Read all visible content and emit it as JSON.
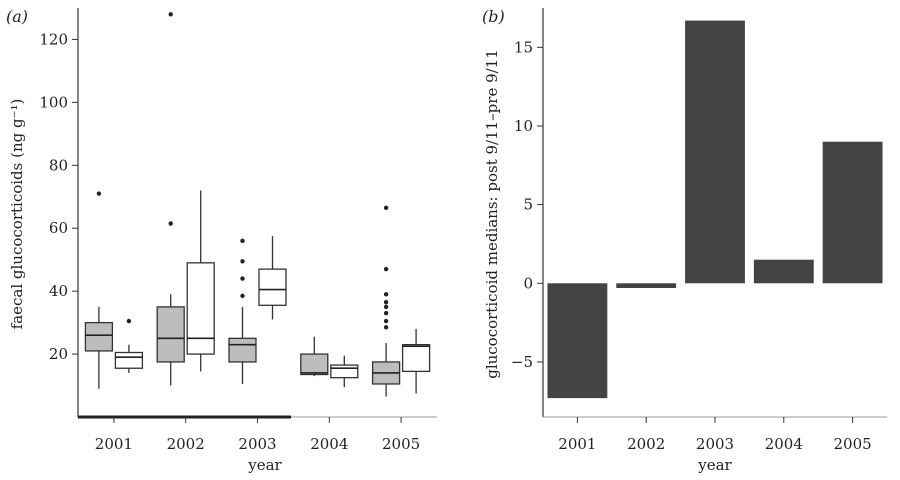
{
  "chart_data": [
    {
      "panel_label": "(a)",
      "type": "box",
      "xlabel": "year",
      "ylabel": "faecal glucocorticoids (ng g⁻¹)",
      "ylim": [
        0,
        130
      ],
      "yticks": [
        20,
        40,
        60,
        80,
        100,
        120
      ],
      "categories": [
        "2001",
        "2002",
        "2003",
        "2004",
        "2005"
      ],
      "series": [
        {
          "color": "#bdbdbd",
          "boxes": [
            {
              "category": "2001",
              "whisker_low": 9,
              "q1": 21,
              "median": 26,
              "q3": 30,
              "whisker_high": 35,
              "outliers": [
                71
              ]
            },
            {
              "category": "2002",
              "whisker_low": 10,
              "q1": 17.5,
              "median": 25,
              "q3": 35,
              "whisker_high": 39,
              "outliers": [
                61.5,
                128
              ]
            },
            {
              "category": "2003",
              "whisker_low": 10.5,
              "q1": 17.5,
              "median": 23,
              "q3": 25,
              "whisker_high": 35,
              "outliers": [
                38.5,
                44,
                49.5,
                56
              ]
            },
            {
              "category": "2004",
              "whisker_low": 13,
              "q1": 13.5,
              "median": 14,
              "q3": 20,
              "whisker_high": 25.5,
              "outliers": []
            },
            {
              "category": "2005",
              "whisker_low": 6.5,
              "q1": 10.5,
              "median": 14,
              "q3": 17.5,
              "whisker_high": 23.5,
              "outliers": [
                28.5,
                30.5,
                33,
                35,
                36.5,
                39,
                47,
                66.5
              ]
            }
          ]
        },
        {
          "color": "#ffffff",
          "boxes": [
            {
              "category": "2001",
              "whisker_low": 14,
              "q1": 15.5,
              "median": 19,
              "q3": 20.5,
              "whisker_high": 23,
              "outliers": [
                30.5
              ]
            },
            {
              "category": "2002",
              "whisker_low": 14.5,
              "q1": 20,
              "median": 25,
              "q3": 49,
              "whisker_high": 72,
              "outliers": []
            },
            {
              "category": "2003",
              "whisker_low": 31,
              "q1": 35.5,
              "median": 40.5,
              "q3": 47,
              "whisker_high": 57.5,
              "outliers": []
            },
            {
              "category": "2004",
              "whisker_low": 9.5,
              "q1": 12.5,
              "median": 15.5,
              "q3": 16.5,
              "whisker_high": 19.5,
              "outliers": []
            },
            {
              "category": "2005",
              "whisker_low": 7.5,
              "q1": 14.5,
              "median": 22.5,
              "q3": 23,
              "whisker_high": 28,
              "outliers": []
            }
          ]
        }
      ]
    },
    {
      "panel_label": "(b)",
      "type": "bar",
      "xlabel": "year",
      "ylabel": "glucocorticoid medians: post 9/11–pre 9/11",
      "ylim": [
        -8.5,
        17.5
      ],
      "yticks": [
        -5,
        0,
        5,
        10,
        15
      ],
      "yticklabels": [
        "−5",
        "0",
        "5",
        "10",
        "15"
      ],
      "categories": [
        "2001",
        "2002",
        "2003",
        "2004",
        "2005"
      ],
      "values": [
        -7.3,
        -0.3,
        16.7,
        1.5,
        9.0
      ],
      "bar_color": "#444444"
    }
  ]
}
